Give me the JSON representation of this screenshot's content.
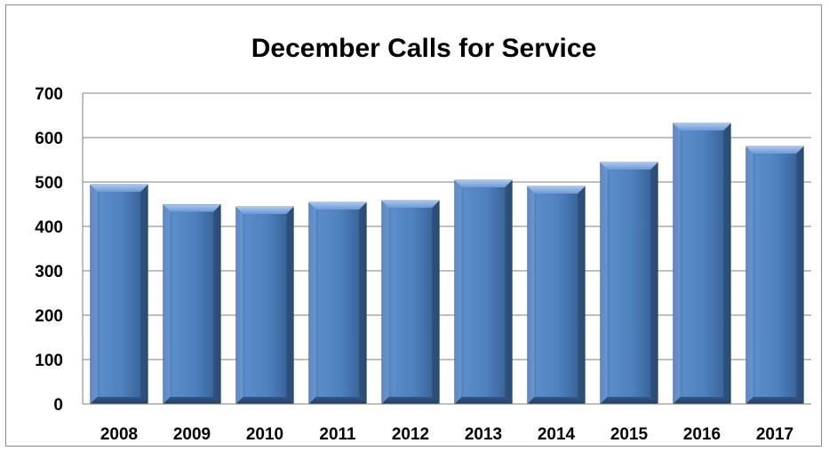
{
  "colors": {
    "bar_main": "#4f81bd",
    "bar_light": "#7da7dc",
    "bar_dark": "#2c4d75",
    "gridline": "#7f7f7f"
  },
  "chart_data": {
    "type": "bar",
    "title": "December Calls for Service",
    "xlabel": "",
    "ylabel": "",
    "categories": [
      "2008",
      "2009",
      "2010",
      "2011",
      "2012",
      "2013",
      "2014",
      "2015",
      "2016",
      "2017"
    ],
    "values": [
      494,
      449,
      444,
      454,
      458,
      504,
      490,
      544,
      632,
      580
    ],
    "ylim": [
      0,
      700
    ],
    "yticks": [
      "0",
      "100",
      "200",
      "300",
      "400",
      "500",
      "600",
      "700"
    ],
    "grid": true,
    "legend": "none"
  }
}
